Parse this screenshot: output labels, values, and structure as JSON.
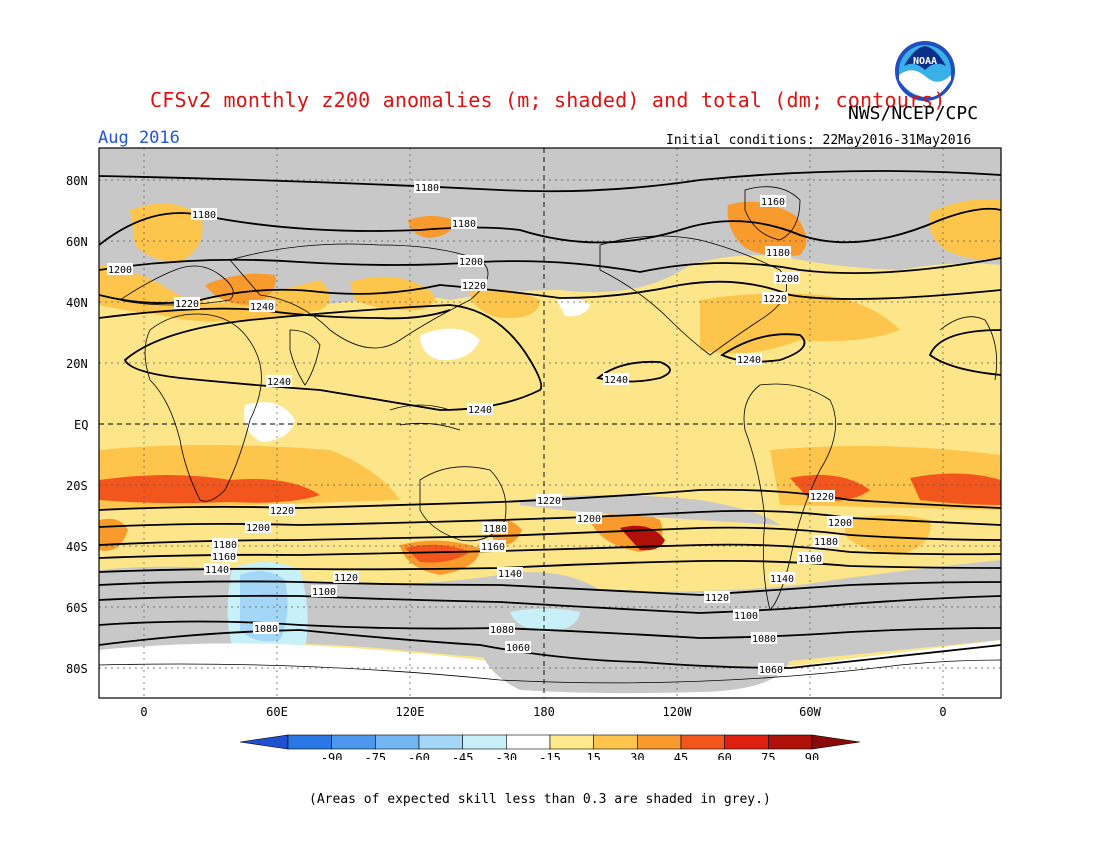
{
  "title": "CFSv2 monthly z200 anomalies (m; shaded) and total (dm; contours)",
  "agency": "NWS/NCEP/CPC",
  "logo": {
    "text": "NOAA"
  },
  "valid_month": "Aug 2016",
  "initial_conditions": "Initial conditions: 22May2016-31May2016",
  "footnote": "(Areas of expected skill less than 0.3 are shaded in grey.)",
  "map": {
    "lat_labels": [
      "80N",
      "60N",
      "40N",
      "20N",
      "EQ",
      "20S",
      "40S",
      "60S",
      "80S"
    ],
    "lon_labels": [
      "0",
      "60E",
      "120E",
      "180",
      "120W",
      "60W",
      "0"
    ],
    "contours": [
      {
        "label": "1180",
        "lat": 68
      },
      {
        "label": "1200",
        "lat": 50
      },
      {
        "label": "1220",
        "lat": 42
      },
      {
        "label": "1240",
        "lat": 22
      },
      {
        "label": "1220",
        "lat": -26
      },
      {
        "label": "1200",
        "lat": -33
      },
      {
        "label": "1180",
        "lat": -38
      },
      {
        "label": "1160",
        "lat": -43
      },
      {
        "label": "1140",
        "lat": -47
      },
      {
        "label": "1120",
        "lat": -52
      },
      {
        "label": "1100",
        "lat": -57
      },
      {
        "label": "1080",
        "lat": -64
      },
      {
        "label": "1060",
        "lat": -73
      }
    ],
    "contour_labels": [
      {
        "text": "1180",
        "lon": 85
      },
      {
        "text": "1180",
        "lon": 20
      },
      {
        "text": "1180",
        "lon": 106
      },
      {
        "text": "1160",
        "lon": 281
      },
      {
        "text": "1180",
        "lon": 295
      },
      {
        "text": "1200",
        "lon": -10
      },
      {
        "text": "1200",
        "lon": 120
      },
      {
        "text": "1200",
        "lon": 288
      },
      {
        "text": "1220",
        "lon": 15
      },
      {
        "text": "1220",
        "lon": 124
      },
      {
        "text": "1220",
        "lon": 291
      },
      {
        "text": "1240",
        "lon": 44
      },
      {
        "text": "1240",
        "lon": 40
      },
      {
        "text": "1240",
        "lon": 150
      },
      {
        "text": "1240",
        "lon": 234
      },
      {
        "text": "1240",
        "lon": 272
      },
      {
        "text": "1220",
        "lon": 180
      },
      {
        "text": "1220",
        "lon": 48
      },
      {
        "text": "1220",
        "lon": 329
      },
      {
        "text": "1200",
        "lon": 35
      },
      {
        "text": "1200",
        "lon": 201
      },
      {
        "text": "1200",
        "lon": 335
      },
      {
        "text": "1180",
        "lon": 30
      },
      {
        "text": "1180",
        "lon": 147
      },
      {
        "text": "1180",
        "lon": 322
      },
      {
        "text": "1160",
        "lon": 30
      },
      {
        "text": "1160",
        "lon": 147
      },
      {
        "text": "1160",
        "lon": 325
      },
      {
        "text": "1140",
        "lon": 25
      },
      {
        "text": "1140",
        "lon": 153
      },
      {
        "text": "1140",
        "lon": 317
      },
      {
        "text": "1120",
        "lon": 62
      },
      {
        "text": "1120",
        "lon": 258
      },
      {
        "text": "1100",
        "lon": 57
      },
      {
        "text": "1100",
        "lon": 267
      },
      {
        "text": "1080",
        "lon": 35
      },
      {
        "text": "1080",
        "lon": 164
      },
      {
        "text": "1080",
        "lon": 279
      },
      {
        "text": "1060",
        "lon": 170
      },
      {
        "text": "1060",
        "lon": 282
      }
    ]
  },
  "colorbar": {
    "ticks": [
      "-90",
      "-75",
      "-60",
      "-45",
      "-30",
      "-15",
      "15",
      "30",
      "45",
      "60",
      "75",
      "90"
    ],
    "colors": [
      "#1e50d0",
      "#2a78e6",
      "#4c97ee",
      "#74b6f4",
      "#a3d6f7",
      "#c7f0f8",
      "#ffffff",
      "#ffe98c",
      "#fdc54b",
      "#f99a2c",
      "#f2561d",
      "#df2010",
      "#b0100a",
      "#8c0a06"
    ]
  },
  "colors": {
    "grey": "#c8c8c8",
    "title": "#dd1111",
    "month": "#2255dd"
  }
}
